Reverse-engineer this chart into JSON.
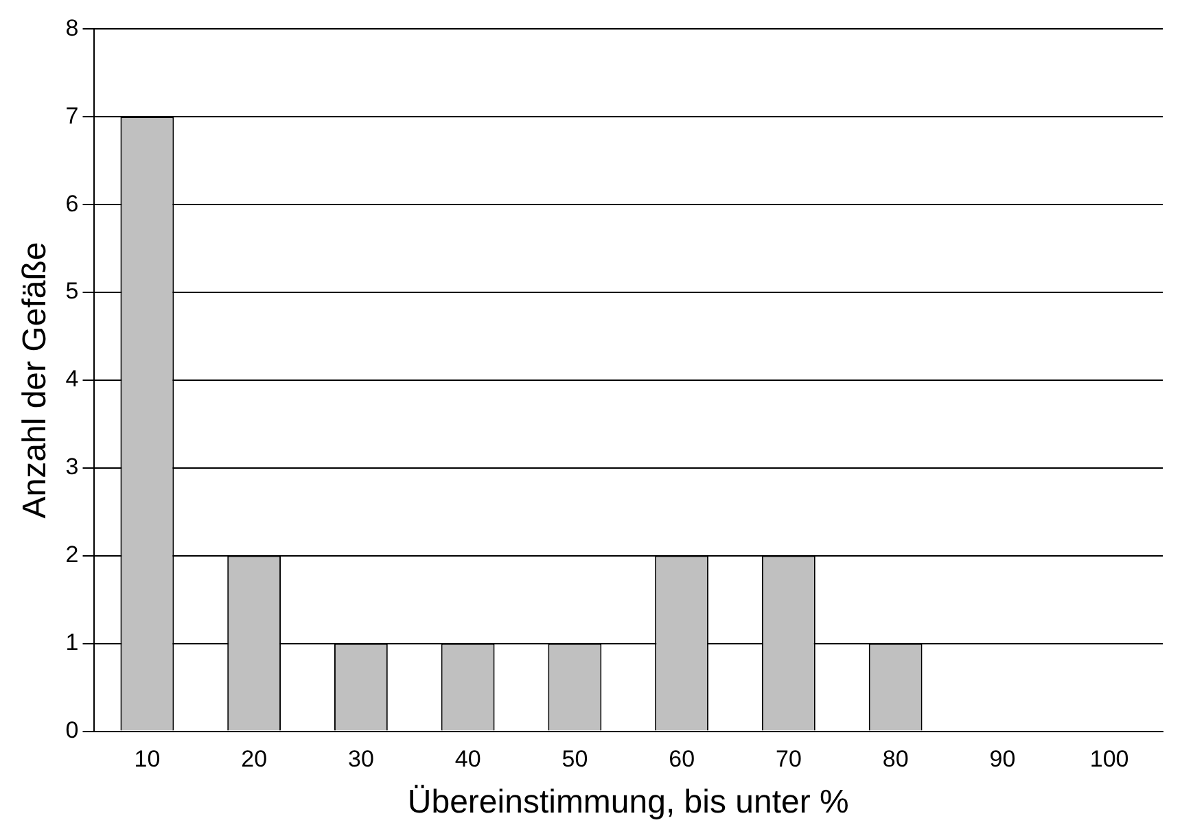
{
  "chart_data": {
    "type": "bar",
    "xlabel": "Übereinstimmung, bis unter %",
    "ylabel": "Anzahl der Gefäße",
    "categories": [
      "10",
      "20",
      "30",
      "40",
      "50",
      "60",
      "70",
      "80",
      "90",
      "100"
    ],
    "values": [
      7,
      2,
      1,
      1,
      1,
      2,
      2,
      1,
      0,
      0
    ],
    "color": "#c0c0c0",
    "ylim": [
      0,
      8
    ],
    "yticks": [
      0,
      1,
      2,
      3,
      4,
      5,
      6,
      7,
      8
    ],
    "grid": "y",
    "legend": false
  }
}
